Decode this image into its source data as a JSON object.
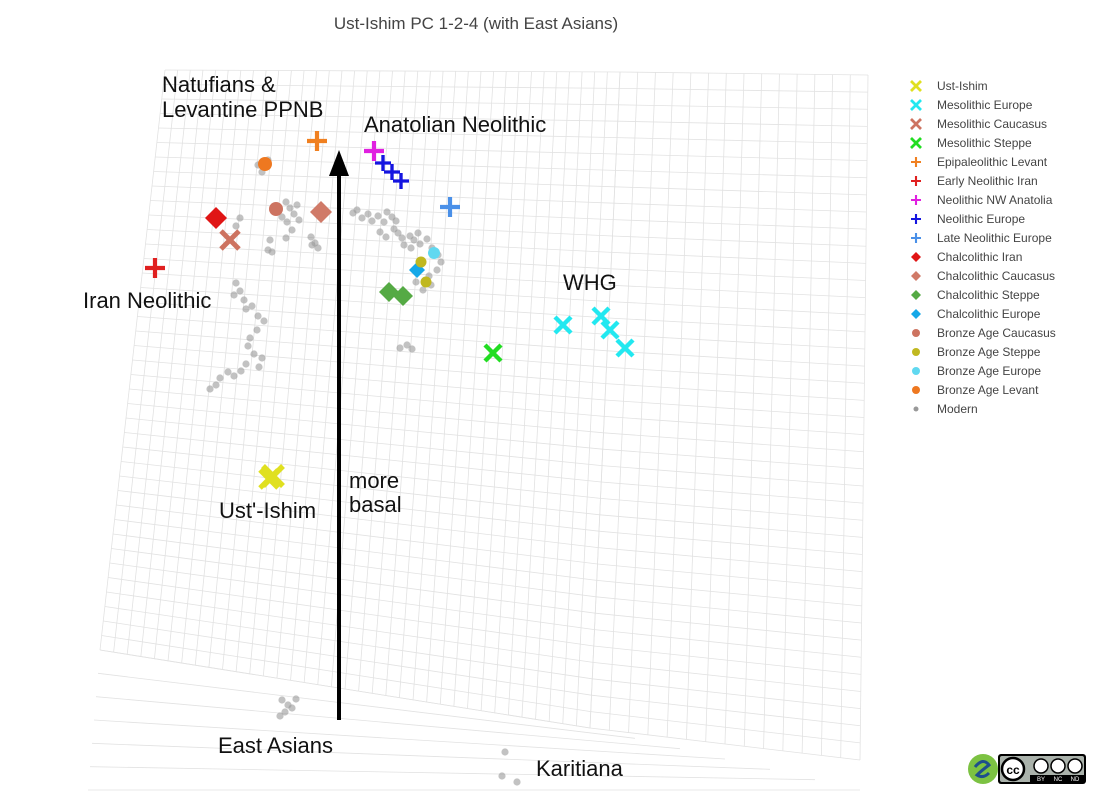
{
  "chart_data": {
    "type": "scatter",
    "title": "Ust-Ishim PC 1-2-4 (with East Asians)",
    "legend_position": "top-right",
    "legend": [
      {
        "name": "Ust-Ishim",
        "symbol": "x",
        "color": "#e0e020"
      },
      {
        "name": "Mesolithic Europe",
        "symbol": "x",
        "color": "#22e8f0"
      },
      {
        "name": "Mesolithic Caucasus",
        "symbol": "x",
        "color": "#cd7360"
      },
      {
        "name": "Mesolithic Steppe",
        "symbol": "x",
        "color": "#22dd22"
      },
      {
        "name": "Epipaleolithic Levant",
        "symbol": "cross",
        "color": "#f08020"
      },
      {
        "name": "Early Neolithic Iran",
        "symbol": "cross",
        "color": "#e02020"
      },
      {
        "name": "Neolithic NW Anatolia",
        "symbol": "cross",
        "color": "#e020e0"
      },
      {
        "name": "Neolithic Europe",
        "symbol": "cross",
        "color": "#1515e0"
      },
      {
        "name": "Late Neolithic Europe",
        "symbol": "cross",
        "color": "#4a90e8"
      },
      {
        "name": "Chalcolithic Iran",
        "symbol": "diamond",
        "color": "#e01515"
      },
      {
        "name": "Chalcolithic Caucasus",
        "symbol": "diamond",
        "color": "#d07a68"
      },
      {
        "name": "Chalcolithic Steppe",
        "symbol": "diamond",
        "color": "#55aa44"
      },
      {
        "name": "Chalcolithic Europe",
        "symbol": "diamond",
        "color": "#15a8e8"
      },
      {
        "name": "Bronze Age Caucasus",
        "symbol": "circle",
        "color": "#cd7360"
      },
      {
        "name": "Bronze Age Steppe",
        "symbol": "circle",
        "color": "#c0b820"
      },
      {
        "name": "Bronze Age Europe",
        "symbol": "circle",
        "color": "#60d8f0"
      },
      {
        "name": "Bronze Age Levant",
        "symbol": "circle",
        "color": "#ee7820"
      },
      {
        "name": "Modern",
        "symbol": "dot",
        "color": "#999999"
      }
    ],
    "annotations": [
      "Natufians &",
      "Levantine PPNB",
      "Anatolian Neolithic",
      "Iran Neolithic",
      "WHG",
      "more",
      "basal",
      "Ust'-Ishim",
      "East Asians",
      "Karitiana"
    ],
    "arrow": {
      "label_lines": [
        "more",
        "basal"
      ]
    }
  },
  "badge": {
    "lines": [
      "BY",
      "NC",
      "ND"
    ]
  }
}
